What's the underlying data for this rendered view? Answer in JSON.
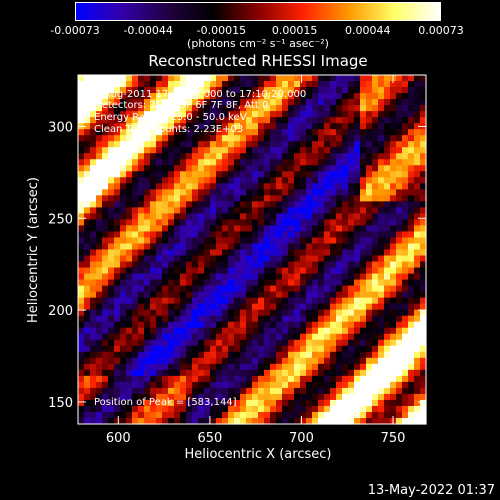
{
  "colorbar": {
    "ticks": [
      "-0.00073",
      "-0.00044",
      "-0.00015",
      "0.00015",
      "0.00044",
      "0.00073"
    ],
    "unit_label": "(photons cm⁻² s⁻¹ asec⁻²)",
    "stops": [
      "#0000ff",
      "#3300aa",
      "#220044",
      "#000000",
      "#880000",
      "#ff2200",
      "#ff9900",
      "#ffff66",
      "#ffffff"
    ]
  },
  "info": {
    "time_range": "7-Aug-2011 17:08:48.000 to 17:10:20.000",
    "detectors": "Detectors: 3F 4F 5F 6F 7F 8F, Att 0",
    "energy_range": "Energy Range: 25.0 - 50.0 keV",
    "algorithm": "Clean     Total Counts: 2.23E+03",
    "peak": "Position of Peak = [583,144]"
  },
  "timestamp": "13-May-2022 01:37",
  "chart_data": {
    "type": "heatmap",
    "title": "Reconstructed RHESSI Image",
    "xlabel": "Heliocentric X (arcsec)",
    "ylabel": "Heliocentric Y (arcsec)",
    "xlim": [
      578,
      768
    ],
    "ylim": [
      138,
      328
    ],
    "xticks": [
      600,
      650,
      700,
      750
    ],
    "yticks": [
      150,
      200,
      250,
      300
    ],
    "zlim": [
      -0.00073,
      0.00073
    ],
    "pattern": "diagonal fringe stripes from upper-left to lower-right; strongest positive emission at upper right (x~750, y~305) and lower left; negative (blue/purple) trough along the diagonal center",
    "peak_position": [
      583,
      144
    ]
  }
}
